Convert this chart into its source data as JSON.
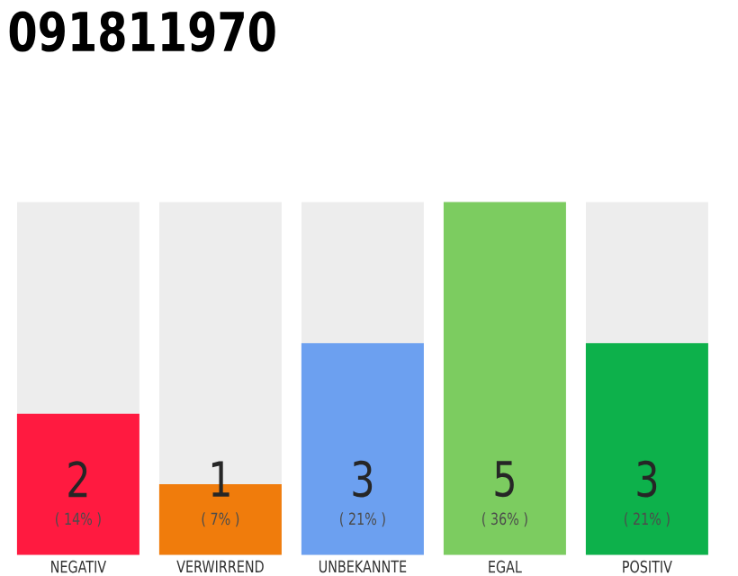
{
  "chart_data": {
    "type": "bar",
    "title": "091811970",
    "categories": [
      "NEGATIV",
      "VERWIRREND",
      "UNBEKANNTE",
      "EGAL",
      "POSITIV"
    ],
    "values": [
      2,
      1,
      3,
      5,
      3
    ],
    "colors": [
      "#ff1a40",
      "#f07c0c",
      "#6ca0f0",
      "#7ccc60",
      "#0db14b"
    ],
    "ylim": [
      0,
      5
    ],
    "data_labels": true,
    "annotations": [
      "( 14% )",
      "( 7% )",
      "( 21% )",
      "( 36% )",
      "( 21% )"
    ]
  }
}
